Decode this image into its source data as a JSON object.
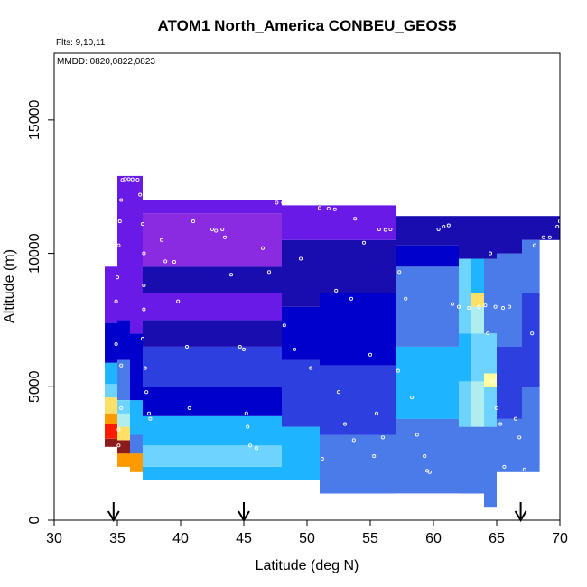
{
  "chart_data": {
    "type": "heatmap",
    "title": "ATOM1 North_America CONBEU_GEOS5",
    "notes": [
      "Flts: 9,10,11",
      "MMDD: 0820,0822,0823"
    ],
    "xlabel": "Latitude (deg N)",
    "ylabel": "Altitude (m)",
    "xlim": [
      30,
      70
    ],
    "ylim": [
      0,
      17500
    ],
    "x_ticks": [
      30,
      35,
      40,
      45,
      50,
      55,
      60,
      65,
      70
    ],
    "y_ticks": [
      0,
      5000,
      10000,
      15000
    ],
    "grid": false,
    "arrow_markers_latitude": [
      34.7,
      45.0,
      66.9
    ],
    "color_scale": [
      "#8B1A1A",
      "#FF1A00",
      "#FF9900",
      "#FFE066",
      "#FFFFA0",
      "#AEEEEE",
      "#6FD3FF",
      "#1EB4FF",
      "#4A7BE8",
      "#2E3FE0",
      "#0000CC",
      "#1A0DB0",
      "#6A1AE6",
      "#8A2BE2"
    ],
    "column_profiles": [
      {
        "lat": [
          34,
          35
        ],
        "alt_bottom": 2750,
        "bands": [
          {
            "top": 3050,
            "level": 0
          },
          {
            "top": 3600,
            "level": 1
          },
          {
            "top": 4000,
            "level": 2
          },
          {
            "top": 4600,
            "level": 3
          },
          {
            "top": 5100,
            "level": 6
          },
          {
            "top": 5900,
            "level": 7
          },
          {
            "top": 7400,
            "level": 10
          },
          {
            "top": 9500,
            "level": 12
          }
        ]
      },
      {
        "lat": [
          35,
          36
        ],
        "alt_bottom": 2000,
        "bands": [
          {
            "top": 2500,
            "level": 2
          },
          {
            "top": 3000,
            "level": 0
          },
          {
            "top": 3500,
            "level": 3
          },
          {
            "top": 4000,
            "level": 5
          },
          {
            "top": 4500,
            "level": 6
          },
          {
            "top": 6000,
            "level": 8
          },
          {
            "top": 7500,
            "level": 10
          },
          {
            "top": 12900,
            "level": 12
          }
        ]
      },
      {
        "lat": [
          36,
          37
        ],
        "alt_bottom": 1800,
        "bands": [
          {
            "top": 2500,
            "level": 2
          },
          {
            "top": 3200,
            "level": 8
          },
          {
            "top": 4500,
            "level": 7
          },
          {
            "top": 7000,
            "level": 10
          },
          {
            "top": 12900,
            "level": 12
          }
        ]
      },
      {
        "lat": [
          37,
          48
        ],
        "alt_bottom": 1500,
        "bands": [
          {
            "top": 2000,
            "level": 7
          },
          {
            "top": 2800,
            "level": 6
          },
          {
            "top": 3900,
            "level": 7
          },
          {
            "top": 5000,
            "level": 10
          },
          {
            "top": 6500,
            "level": 9
          },
          {
            "top": 7500,
            "level": 11
          },
          {
            "top": 8500,
            "level": 12
          },
          {
            "top": 9500,
            "level": 11
          },
          {
            "top": 11500,
            "level": 13
          },
          {
            "top": 12000,
            "level": 12
          }
        ]
      },
      {
        "lat": [
          48,
          51
        ],
        "alt_bottom": 1500,
        "bands": [
          {
            "top": 3500,
            "level": 7
          },
          {
            "top": 6000,
            "level": 9
          },
          {
            "top": 8000,
            "level": 10
          },
          {
            "top": 10500,
            "level": 11
          },
          {
            "top": 11800,
            "level": 12
          }
        ]
      },
      {
        "lat": [
          51,
          57
        ],
        "alt_bottom": 1000,
        "bands": [
          {
            "top": 3200,
            "level": 8
          },
          {
            "top": 5800,
            "level": 9
          },
          {
            "top": 8500,
            "level": 10
          },
          {
            "top": 10500,
            "level": 11
          },
          {
            "top": 11800,
            "level": 12
          }
        ]
      },
      {
        "lat": [
          57,
          62
        ],
        "alt_bottom": 1000,
        "bands": [
          {
            "top": 3800,
            "level": 8
          },
          {
            "top": 6500,
            "level": 7
          },
          {
            "top": 9500,
            "level": 8
          },
          {
            "top": 10300,
            "level": 10
          },
          {
            "top": 11400,
            "level": 11
          }
        ]
      },
      {
        "lat": [
          62,
          63
        ],
        "alt_bottom": 1000,
        "bands": [
          {
            "top": 3500,
            "level": 8
          },
          {
            "top": 5200,
            "level": 6
          },
          {
            "top": 7000,
            "level": 7
          },
          {
            "top": 9800,
            "level": 6
          },
          {
            "top": 11400,
            "level": 11
          }
        ]
      },
      {
        "lat": [
          63,
          64
        ],
        "alt_bottom": 1000,
        "bands": [
          {
            "top": 3500,
            "level": 8
          },
          {
            "top": 5200,
            "level": 5
          },
          {
            "top": 7000,
            "level": 6
          },
          {
            "top": 8000,
            "level": 5
          },
          {
            "top": 8500,
            "level": 3
          },
          {
            "top": 9800,
            "level": 7
          },
          {
            "top": 11400,
            "level": 11
          }
        ]
      },
      {
        "lat": [
          64,
          65
        ],
        "alt_bottom": 500,
        "bands": [
          {
            "top": 3500,
            "level": 8
          },
          {
            "top": 5000,
            "level": 6
          },
          {
            "top": 5500,
            "level": 4
          },
          {
            "top": 7000,
            "level": 6
          },
          {
            "top": 9800,
            "level": 8
          },
          {
            "top": 11400,
            "level": 11
          }
        ]
      },
      {
        "lat": [
          65,
          67
        ],
        "alt_bottom": 1800,
        "bands": [
          {
            "top": 3800,
            "level": 8
          },
          {
            "top": 6500,
            "level": 9
          },
          {
            "top": 10000,
            "level": 8
          },
          {
            "top": 11400,
            "level": 11
          }
        ]
      },
      {
        "lat": [
          67,
          70
        ],
        "alt_bottom": 10500,
        "bands": [
          {
            "top": 11400,
            "level": 11
          }
        ]
      }
    ],
    "extra_columns": [
      {
        "lat": [
          67,
          68.4
        ],
        "alt_bottom": 1800,
        "bands": [
          {
            "top": 5000,
            "level": 8
          },
          {
            "top": 8500,
            "level": 9
          },
          {
            "top": 10500,
            "level": 8
          }
        ]
      }
    ],
    "flight_track_points": [
      [
        35.4,
        12750
      ],
      [
        35.6,
        12780
      ],
      [
        35.9,
        12780
      ],
      [
        36.2,
        12770
      ],
      [
        36.6,
        12760
      ],
      [
        36.8,
        12200
      ],
      [
        35.3,
        12000
      ],
      [
        35.2,
        11200
      ],
      [
        35.1,
        10300
      ],
      [
        35.0,
        9100
      ],
      [
        34.9,
        8200
      ],
      [
        34.9,
        6600
      ],
      [
        35.3,
        5800
      ],
      [
        35.3,
        4200
      ],
      [
        35.1,
        3400
      ],
      [
        35.1,
        2800
      ],
      [
        37.0,
        11100
      ],
      [
        37.1,
        10000
      ],
      [
        37.1,
        8800
      ],
      [
        37.1,
        7900
      ],
      [
        37.0,
        6800
      ],
      [
        37.2,
        5700
      ],
      [
        37.3,
        4800
      ],
      [
        37.5,
        4000
      ],
      [
        37.6,
        3800
      ],
      [
        38.5,
        10500
      ],
      [
        38.8,
        9700
      ],
      [
        39.5,
        9680
      ],
      [
        39.8,
        8200
      ],
      [
        40.5,
        6500
      ],
      [
        40.7,
        4200
      ],
      [
        41.0,
        11200
      ],
      [
        42.5,
        10900
      ],
      [
        42.8,
        10850
      ],
      [
        43.3,
        10900
      ],
      [
        43.5,
        10600
      ],
      [
        44.0,
        9200
      ],
      [
        44.7,
        6500
      ],
      [
        45.0,
        6400
      ],
      [
        45.2,
        4000
      ],
      [
        45.3,
        3500
      ],
      [
        45.5,
        2800
      ],
      [
        46.0,
        2700
      ],
      [
        46.5,
        10200
      ],
      [
        47.0,
        9300
      ],
      [
        47.6,
        11900
      ],
      [
        48.1,
        11900
      ],
      [
        48.7,
        11900
      ],
      [
        48.2,
        7300
      ],
      [
        49.0,
        6400
      ],
      [
        49.5,
        9800
      ],
      [
        50.3,
        5700
      ],
      [
        51.0,
        11700
      ],
      [
        51.7,
        11680
      ],
      [
        52.2,
        11650
      ],
      [
        52.3,
        8600
      ],
      [
        52.5,
        4800
      ],
      [
        53.0,
        3600
      ],
      [
        53.5,
        8300
      ],
      [
        53.8,
        11300
      ],
      [
        54.5,
        10400
      ],
      [
        55.7,
        10900
      ],
      [
        56.2,
        10880
      ],
      [
        56.6,
        10900
      ],
      [
        55.5,
        4000
      ],
      [
        55.3,
        2400
      ],
      [
        56.0,
        3100
      ],
      [
        57.3,
        9300
      ],
      [
        57.8,
        8300
      ],
      [
        58.3,
        4600
      ],
      [
        58.7,
        3200
      ],
      [
        59.3,
        2400
      ],
      [
        59.5,
        1850
      ],
      [
        59.7,
        1800
      ],
      [
        60.4,
        10900
      ],
      [
        60.8,
        11000
      ],
      [
        61.2,
        11050
      ],
      [
        61.5,
        8100
      ],
      [
        62.0,
        8000
      ],
      [
        62.8,
        7950
      ],
      [
        63.6,
        8000
      ],
      [
        64.1,
        8050
      ],
      [
        64.9,
        8000
      ],
      [
        65.5,
        7950
      ],
      [
        66.0,
        8000
      ],
      [
        64.5,
        10000
      ],
      [
        64.3,
        7000
      ],
      [
        64.7,
        5200
      ],
      [
        65.0,
        4200
      ],
      [
        65.3,
        3600
      ],
      [
        65.6,
        2000
      ],
      [
        65.9,
        1400
      ],
      [
        66.5,
        3800
      ],
      [
        66.8,
        3100
      ],
      [
        67.2,
        1900
      ],
      [
        67.8,
        7000
      ],
      [
        68.0,
        10300
      ],
      [
        68.7,
        10600
      ],
      [
        69.2,
        10600
      ],
      [
        69.8,
        11000
      ],
      [
        70.0,
        11200
      ],
      [
        55.0,
        6200
      ],
      [
        57.2,
        5600
      ],
      [
        51.2,
        2300
      ],
      [
        53.7,
        3000
      ]
    ]
  }
}
